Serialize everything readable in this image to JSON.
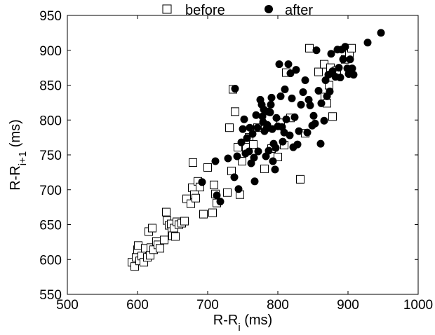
{
  "chart_data": {
    "type": "scatter",
    "title": "",
    "xlabel": {
      "base": "R-R",
      "sub": "i",
      "unit": " (ms)"
    },
    "ylabel": {
      "base": "R-R",
      "sub": "i+1",
      "unit": " (ms)"
    },
    "xlim": [
      500,
      1000
    ],
    "ylim": [
      550,
      950
    ],
    "xticks": [
      500,
      600,
      700,
      800,
      900,
      1000
    ],
    "yticks": [
      550,
      600,
      650,
      700,
      750,
      800,
      850,
      900,
      950
    ],
    "grid": false,
    "legend_position": "top",
    "series": [
      {
        "name": "before",
        "marker": "open-square",
        "color": "#000000",
        "points": [
          [
            592,
            596
          ],
          [
            596,
            590
          ],
          [
            598,
            603
          ],
          [
            600,
            614
          ],
          [
            601,
            620
          ],
          [
            603,
            598
          ],
          [
            606,
            605
          ],
          [
            609,
            596
          ],
          [
            611,
            616
          ],
          [
            614,
            603
          ],
          [
            616,
            640
          ],
          [
            618,
            606
          ],
          [
            619,
            617
          ],
          [
            621,
            645
          ],
          [
            623,
            614
          ],
          [
            627,
            626
          ],
          [
            629,
            621
          ],
          [
            632,
            616
          ],
          [
            638,
            628
          ],
          [
            641,
            668
          ],
          [
            642,
            656
          ],
          [
            645,
            649
          ],
          [
            648,
            651
          ],
          [
            649,
            640
          ],
          [
            650,
            634
          ],
          [
            652,
            645
          ],
          [
            654,
            633
          ],
          [
            656,
            654
          ],
          [
            659,
            650
          ],
          [
            663,
            652
          ],
          [
            667,
            655
          ],
          [
            670,
            687
          ],
          [
            676,
            680
          ],
          [
            678,
            703
          ],
          [
            679,
            739
          ],
          [
            681,
            693
          ],
          [
            683,
            688
          ],
          [
            686,
            712
          ],
          [
            689,
            704
          ],
          [
            694,
            665
          ],
          [
            700,
            732
          ],
          [
            707,
            667
          ],
          [
            709,
            707
          ],
          [
            711,
            694
          ],
          [
            713,
            681
          ],
          [
            728,
            696
          ],
          [
            731,
            789
          ],
          [
            734,
            727
          ],
          [
            736,
            844
          ],
          [
            739,
            812
          ],
          [
            743,
            761
          ],
          [
            746,
            693
          ],
          [
            749,
            741
          ],
          [
            755,
            761
          ],
          [
            759,
            775
          ],
          [
            765,
            765
          ],
          [
            771,
            789
          ],
          [
            781,
            730
          ],
          [
            791,
            759
          ],
          [
            800,
            747
          ],
          [
            804,
            796
          ],
          [
            809,
            764
          ],
          [
            812,
            868
          ],
          [
            818,
            803
          ],
          [
            832,
            715
          ],
          [
            839,
            781
          ],
          [
            845,
            903
          ],
          [
            858,
            869
          ],
          [
            866,
            880
          ],
          [
            867,
            833
          ],
          [
            870,
            824
          ],
          [
            873,
            850
          ],
          [
            875,
            875
          ],
          [
            878,
            805
          ],
          [
            884,
            871
          ],
          [
            896,
            887
          ],
          [
            902,
            895
          ],
          [
            905,
            903
          ]
        ]
      },
      {
        "name": "after",
        "marker": "filled-circle",
        "color": "#000000",
        "points": [
          [
            692,
            711
          ],
          [
            711,
            741
          ],
          [
            713,
            692
          ],
          [
            718,
            683
          ],
          [
            729,
            745
          ],
          [
            738,
            718
          ],
          [
            739,
            845
          ],
          [
            742,
            748
          ],
          [
            744,
            701
          ],
          [
            748,
            768
          ],
          [
            750,
            787
          ],
          [
            752,
            801
          ],
          [
            754,
            752
          ],
          [
            756,
            774
          ],
          [
            759,
            755
          ],
          [
            760,
            789
          ],
          [
            762,
            738
          ],
          [
            764,
            780
          ],
          [
            766,
            746
          ],
          [
            767,
            712
          ],
          [
            769,
            807
          ],
          [
            771,
            789
          ],
          [
            772,
            755
          ],
          [
            775,
            829
          ],
          [
            777,
            822
          ],
          [
            778,
            805
          ],
          [
            779,
            797
          ],
          [
            780,
            815
          ],
          [
            781,
            784
          ],
          [
            783,
            748
          ],
          [
            784,
            788
          ],
          [
            785,
            793
          ],
          [
            786,
            812
          ],
          [
            787,
            756
          ],
          [
            789,
            811
          ],
          [
            790,
            822
          ],
          [
            791,
            832
          ],
          [
            792,
            787
          ],
          [
            793,
            741
          ],
          [
            794,
            766
          ],
          [
            796,
            729
          ],
          [
            797,
            760
          ],
          [
            798,
            803
          ],
          [
            800,
            791
          ],
          [
            802,
            880
          ],
          [
            804,
            834
          ],
          [
            806,
            790
          ],
          [
            807,
            769
          ],
          [
            809,
            782
          ],
          [
            810,
            844
          ],
          [
            812,
            801
          ],
          [
            815,
            880
          ],
          [
            817,
            778
          ],
          [
            818,
            867
          ],
          [
            820,
            831
          ],
          [
            822,
            761
          ],
          [
            824,
            804
          ],
          [
            826,
            872
          ],
          [
            828,
            765
          ],
          [
            830,
            784
          ],
          [
            833,
            822
          ],
          [
            836,
            840
          ],
          [
            839,
            857
          ],
          [
            842,
            782
          ],
          [
            844,
            829
          ],
          [
            846,
            821
          ],
          [
            849,
            792
          ],
          [
            851,
            806
          ],
          [
            853,
            795
          ],
          [
            855,
            900
          ],
          [
            858,
            842
          ],
          [
            861,
            766
          ],
          [
            862,
            824
          ],
          [
            866,
            799
          ],
          [
            868,
            857
          ],
          [
            870,
            834
          ],
          [
            872,
            865
          ],
          [
            874,
            841
          ],
          [
            876,
            895
          ],
          [
            878,
            870
          ],
          [
            882,
            862
          ],
          [
            885,
            901
          ],
          [
            887,
            875
          ],
          [
            889,
            861
          ],
          [
            891,
            901
          ],
          [
            893,
            887
          ],
          [
            896,
            905
          ],
          [
            899,
            874
          ],
          [
            901,
            866
          ],
          [
            903,
            887
          ],
          [
            906,
            874
          ],
          [
            908,
            865
          ],
          [
            928,
            911
          ],
          [
            947,
            925
          ]
        ]
      }
    ]
  }
}
